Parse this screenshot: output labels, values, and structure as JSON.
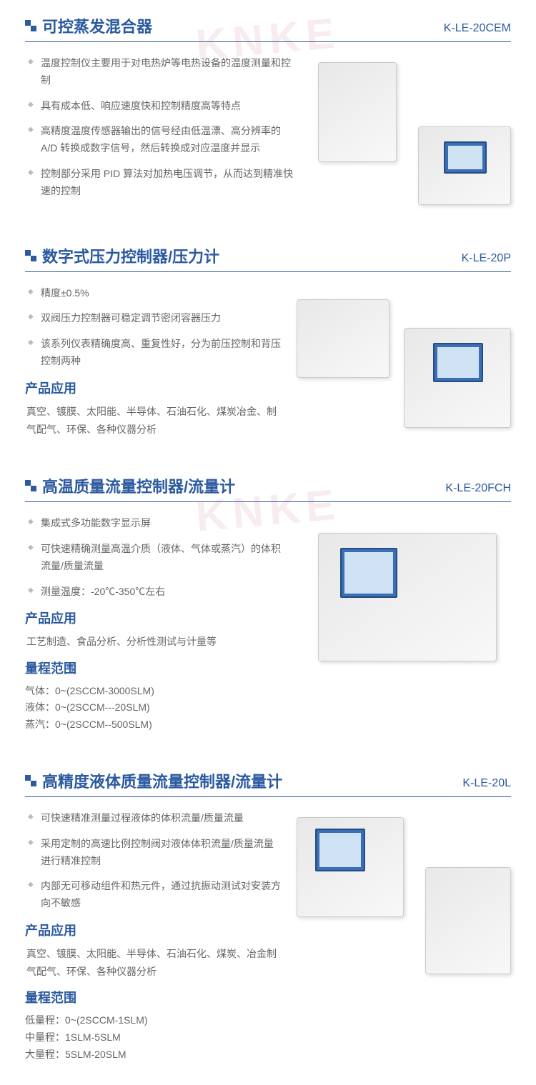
{
  "watermark": "KNKE",
  "colors": {
    "brand": "#2c5aa0",
    "text": "#666666",
    "bullet": "#bbbbbb"
  },
  "sections": [
    {
      "title": "可控蒸发混合器",
      "code": "K-LE-20CEM",
      "bullets": [
        "温度控制仪主要用于对电热炉等电热设备的温度测量和控制",
        "具有成本低、响应速度快和控制精度高等特点",
        "高精度温度传感器输出的信号经由低温漂、高分辨率的A/D 转换成数字信号，然后转换成对应温度并显示",
        "控制部分采用 PID 算法对加热电压调节，从而达到精准快速的控制"
      ]
    },
    {
      "title": "数字式压力控制器/压力计",
      "code": "K-LE-20P",
      "bullets": [
        "精度±0.5%",
        "双阀压力控制器可稳定调节密闭容器压力",
        "该系列仪表精确度高、重复性好，分为前压控制和背压控制两种"
      ],
      "app_title": "产品应用",
      "app_text": "真空、镀膜、太阳能、半导体、石油石化、煤炭冶金、制气配气、环保、各种仪器分析"
    },
    {
      "title": "高温质量流量控制器/流量计",
      "code": "K-LE-20FCH",
      "bullets": [
        "集成式多功能数字显示屏",
        "可快速精确测量高温介质（液体、气体或蒸汽）的体积流量/质量流量",
        "测量温度：-20℃-350℃左右"
      ],
      "app_title": "产品应用",
      "app_text": "工艺制造、食品分析、分析性测试与计量等",
      "range_title": "量程范围",
      "ranges": [
        "气体：0~(2SCCM-3000SLM)",
        "液体：0~(2SCCM---20SLM)",
        "蒸汽：0~(2SCCM--500SLM)"
      ]
    },
    {
      "title": "高精度液体质量流量控制器/流量计",
      "code": "K-LE-20L",
      "bullets": [
        "可快速精准测量过程液体的体积流量/质量流量",
        "采用定制的高速比例控制阀对液体体积流量/质量流量进行精准控制",
        "内部无可移动组件和热元件，通过抗振动测试对安装方向不敏感"
      ],
      "app_title": "产品应用",
      "app_text": "真空、镀膜、太阳能、半导体、石油石化、煤炭、冶金制气配气、环保、各种仪器分析",
      "range_title": "量程范围",
      "ranges": [
        "低量程：0~(2SCCM-1SLM)",
        "中量程：1SLM-5SLM",
        "大量程：5SLM-20SLM"
      ]
    }
  ]
}
